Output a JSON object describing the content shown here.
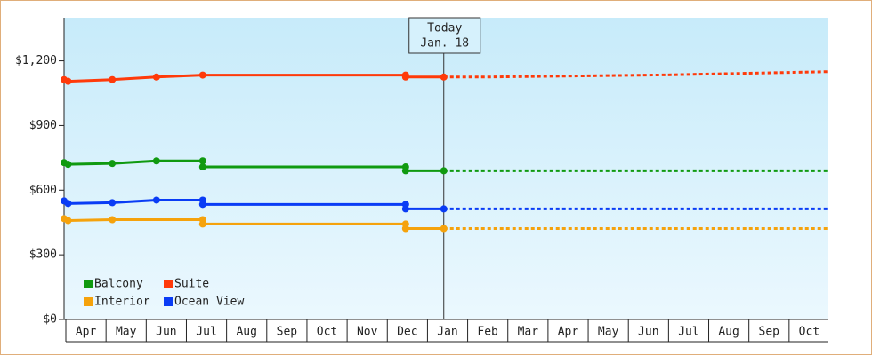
{
  "chart_data": {
    "type": "line",
    "categories": [
      "Apr",
      "May",
      "Jun",
      "Jul",
      "Aug",
      "Sep",
      "Oct",
      "Nov",
      "Dec",
      "Jan",
      "Feb",
      "Mar",
      "Apr",
      "May",
      "Jun",
      "Jul",
      "Aug",
      "Sep",
      "Oct"
    ],
    "xlim": [
      0,
      19
    ],
    "ylim": [
      0,
      1400
    ],
    "yticks": [
      {
        "value": 0,
        "label": "$0"
      },
      {
        "value": 300,
        "label": "$300"
      },
      {
        "value": 600,
        "label": "$600"
      },
      {
        "value": 900,
        "label": "$900"
      },
      {
        "value": 1200,
        "label": "$1,200"
      }
    ],
    "today": {
      "label": [
        "Today",
        "Jan. 18"
      ],
      "x": 9.45
    },
    "series": [
      {
        "name": "Balcony",
        "color": "#109a10",
        "x": [
          0,
          0.1,
          1.2,
          2.3,
          3.45,
          3.45,
          8.5,
          8.5,
          9.45
        ],
        "values": [
          728,
          720,
          724,
          736,
          736,
          708,
          708,
          690,
          690
        ],
        "forecast_x": [
          9.45,
          19
        ],
        "forecast_values": [
          690,
          690
        ]
      },
      {
        "name": "Suite",
        "color": "#ff3a0a",
        "x": [
          0,
          0.1,
          1.2,
          2.3,
          3.45,
          8.5,
          8.5,
          9.45
        ],
        "values": [
          1113,
          1105,
          1113,
          1125,
          1134,
          1134,
          1125,
          1125
        ],
        "forecast_x": [
          9.45,
          10.5,
          15,
          19
        ],
        "forecast_values": [
          1125,
          1125,
          1135,
          1150
        ]
      },
      {
        "name": "Interior",
        "color": "#f5a20c",
        "x": [
          0,
          0.1,
          1.2,
          3.45,
          3.45,
          8.5,
          8.5,
          9.45
        ],
        "values": [
          468,
          459,
          463,
          463,
          443,
          443,
          422,
          422
        ],
        "forecast_x": [
          9.45,
          19
        ],
        "forecast_values": [
          422,
          422
        ]
      },
      {
        "name": "Ocean View",
        "color": "#0a3cf5",
        "x": [
          0,
          0.1,
          1.2,
          2.3,
          3.45,
          3.45,
          8.5,
          8.5,
          9.45
        ],
        "values": [
          550,
          538,
          542,
          554,
          554,
          534,
          534,
          513,
          513
        ],
        "forecast_x": [
          9.45,
          19
        ],
        "forecast_values": [
          513,
          513
        ]
      }
    ]
  }
}
